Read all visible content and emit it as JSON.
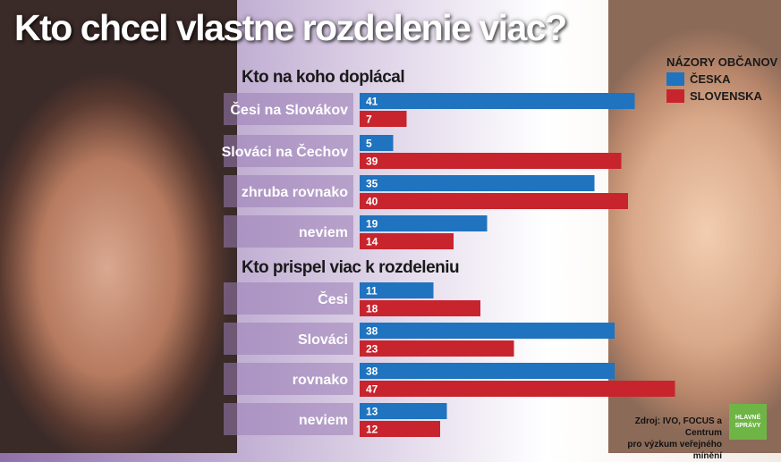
{
  "title": "Kto chcel vlastne rozdelenie viac?",
  "legend": {
    "title": "NÁZORY OBČANOV",
    "items": [
      {
        "label": "ČESKA",
        "color": "#1f73bf"
      },
      {
        "label": "SLOVENSKA",
        "color": "#c8242d"
      }
    ]
  },
  "source": {
    "line1": "Zdroj: IVO, FOCUS a Centrum",
    "line2": "pro výzkum veřejného mínění"
  },
  "logo": {
    "line1": "HLAVNÉ",
    "line2": "SPRÁVY"
  },
  "colors": {
    "ceska": "#1f73bf",
    "slovenska": "#c8242d"
  },
  "chart_data": [
    {
      "type": "bar",
      "title": "Kto na koho doplácal",
      "categories": [
        "Česi na Slovákov",
        "Slováci na Čechov",
        "zhruba rovnako",
        "neviem"
      ],
      "series": [
        {
          "name": "ČESKA",
          "values": [
            41,
            5,
            35,
            19
          ]
        },
        {
          "name": "SLOVENSKA",
          "values": [
            7,
            39,
            40,
            14
          ]
        }
      ]
    },
    {
      "type": "bar",
      "title": "Kto prispel viac k rozdeleniu",
      "categories": [
        "Česi",
        "Slováci",
        "rovnako",
        "neviem"
      ],
      "series": [
        {
          "name": "ČESKA",
          "values": [
            11,
            38,
            38,
            13
          ]
        },
        {
          "name": "SLOVENSKA",
          "values": [
            18,
            23,
            47,
            12
          ]
        }
      ]
    }
  ]
}
